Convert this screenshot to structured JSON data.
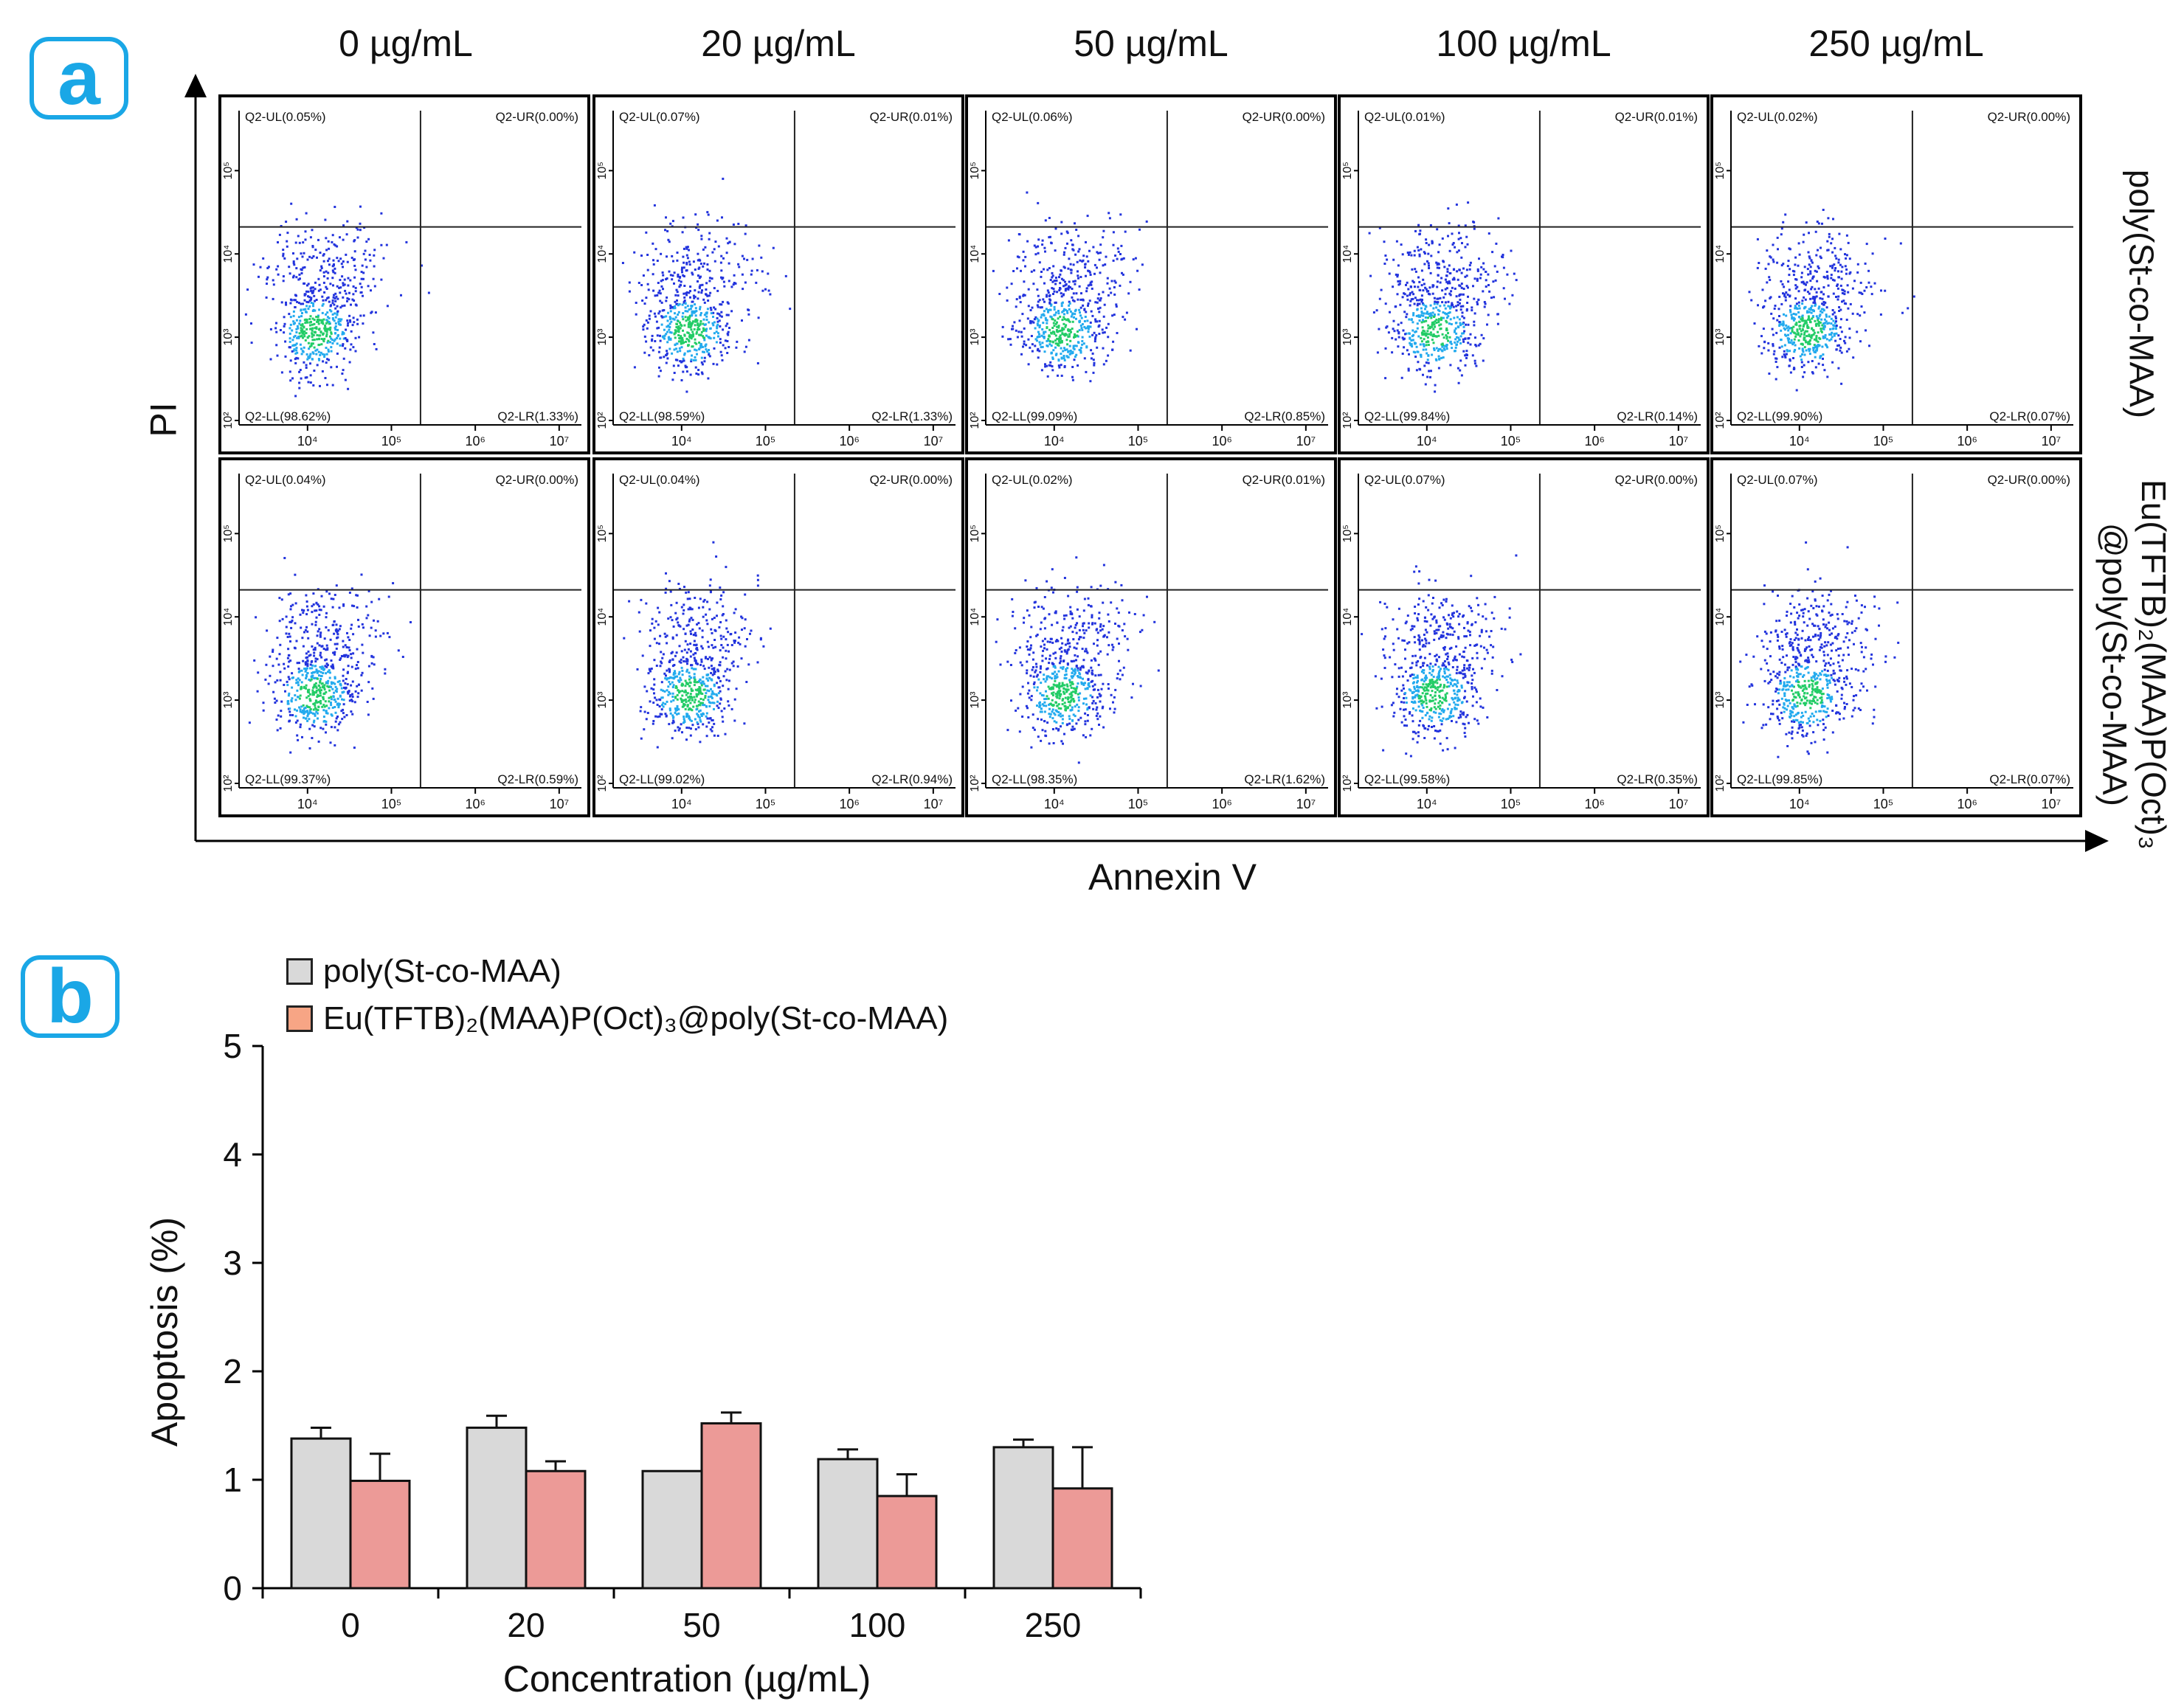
{
  "panel_a": {
    "tag": "a",
    "conc_headers": [
      "0 µg/mL",
      "20 µg/mL",
      "50 µg/mL",
      "100 µg/mL",
      "250 µg/mL"
    ],
    "row_label_top": "poly(St-co-MAA)",
    "row_label_bottom_l1": "Eu(TFTB)₂(MAA)P(Oct)₃",
    "row_label_bottom_l2": "@poly(St-co-MAA)",
    "y_axis_label": "PI",
    "x_axis_label": "Annexin V",
    "tick_labels_x": [
      "10⁴",
      "10⁵",
      "10⁶",
      "10⁷"
    ],
    "tick_labels_y": [
      "10²",
      "10³",
      "10⁴",
      "10⁵"
    ],
    "plots": [
      [
        {
          "ul": "Q2-UL(0.05%)",
          "ur": "Q2-UR(0.00%)",
          "ll": "Q2-LL(98.62%)",
          "lr": "Q2-LR(1.33%)"
        },
        {
          "ul": "Q2-UL(0.07%)",
          "ur": "Q2-UR(0.01%)",
          "ll": "Q2-LL(98.59%)",
          "lr": "Q2-LR(1.33%)"
        },
        {
          "ul": "Q2-UL(0.06%)",
          "ur": "Q2-UR(0.00%)",
          "ll": "Q2-LL(99.09%)",
          "lr": "Q2-LR(0.85%)"
        },
        {
          "ul": "Q2-UL(0.01%)",
          "ur": "Q2-UR(0.01%)",
          "ll": "Q2-LL(99.84%)",
          "lr": "Q2-LR(0.14%)"
        },
        {
          "ul": "Q2-UL(0.02%)",
          "ur": "Q2-UR(0.00%)",
          "ll": "Q2-LL(99.90%)",
          "lr": "Q2-LR(0.07%)"
        }
      ],
      [
        {
          "ul": "Q2-UL(0.04%)",
          "ur": "Q2-UR(0.00%)",
          "ll": "Q2-LL(99.37%)",
          "lr": "Q2-LR(0.59%)"
        },
        {
          "ul": "Q2-UL(0.04%)",
          "ur": "Q2-UR(0.00%)",
          "ll": "Q2-LL(99.02%)",
          "lr": "Q2-LR(0.94%)"
        },
        {
          "ul": "Q2-UL(0.02%)",
          "ur": "Q2-UR(0.01%)",
          "ll": "Q2-LL(98.35%)",
          "lr": "Q2-LR(1.62%)"
        },
        {
          "ul": "Q2-UL(0.07%)",
          "ur": "Q2-UR(0.00%)",
          "ll": "Q2-LL(99.58%)",
          "lr": "Q2-LR(0.35%)"
        },
        {
          "ul": "Q2-UL(0.07%)",
          "ur": "Q2-UR(0.00%)",
          "ll": "Q2-LL(99.85%)",
          "lr": "Q2-LR(0.07%)"
        }
      ]
    ]
  },
  "panel_b": {
    "tag": "b",
    "legend": [
      "poly(St-co-MAA)",
      "Eu(TFTB)₂(MAA)P(Oct)₃@poly(St-co-MAA)"
    ]
  },
  "colors": {
    "accent": "#1aa7e6",
    "bar_polymer": "#d9d9d9",
    "bar_eu": "#ec9a97",
    "legend_eu": "#f7a585",
    "dot_blue": "#2233dd",
    "dot_green": "#22cc66"
  },
  "chart_data": {
    "type": "bar",
    "title": "",
    "xlabel": "Concentration (µg/mL)",
    "ylabel": "Apoptosis (%)",
    "ylim": [
      0,
      5
    ],
    "yticks": [
      0,
      1,
      2,
      3,
      4,
      5
    ],
    "categories": [
      "0",
      "20",
      "50",
      "100",
      "250"
    ],
    "series": [
      {
        "name": "poly(St-co-MAA)",
        "values": [
          1.38,
          1.48,
          1.08,
          1.19,
          1.3
        ],
        "errors": [
          0.1,
          0.11,
          0.0,
          0.09,
          0.07
        ]
      },
      {
        "name": "Eu(TFTB)2(MAA)P(Oct)3@poly(St-co-MAA)",
        "values": [
          0.99,
          1.08,
          1.52,
          0.85,
          0.92
        ],
        "errors": [
          0.25,
          0.09,
          0.1,
          0.2,
          0.38
        ]
      }
    ],
    "legend_position": "top-left"
  }
}
